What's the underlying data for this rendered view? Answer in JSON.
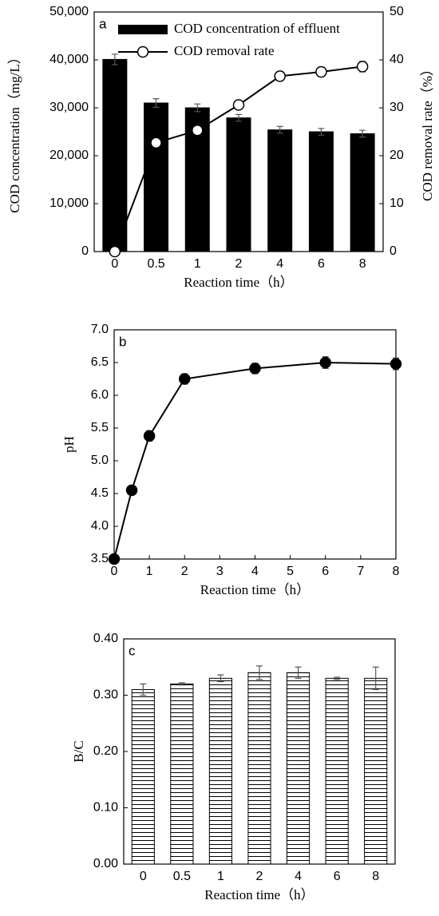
{
  "chart_data": [
    {
      "type": "bar",
      "annotation": "a",
      "x_label": "Reaction time（h）",
      "y_label": "COD  concentration（mg/L）",
      "y2_label": "COD removal rate（%）",
      "categories": [
        "0",
        "0.5",
        "1",
        "2",
        "4",
        "6",
        "8"
      ],
      "series": [
        {
          "name": "COD concentration of effluent",
          "color": "#000000",
          "values": [
            40100,
            31000,
            30000,
            27900,
            25400,
            25000,
            24600
          ],
          "errors": [
            1100,
            900,
            800,
            700,
            700,
            700,
            700
          ]
        },
        {
          "name": "COD removal rate",
          "type": "line",
          "axis": "y2",
          "color": "#000000",
          "marker_fill": "#ffffff",
          "values": [
            0,
            22.7,
            25.3,
            30.6,
            36.6,
            37.5,
            38.6
          ],
          "errors": [
            0,
            0.5,
            0.8,
            0.6,
            1.0,
            1.0,
            1.1
          ]
        }
      ],
      "ylim": [
        0,
        50000
      ],
      "yticks": [
        0,
        {
          "value": 10000,
          "label": "10,000"
        },
        {
          "value": 20000,
          "label": "20,000"
        },
        {
          "value": 30000,
          "label": "30,000"
        },
        {
          "value": 40000,
          "label": "40,000"
        },
        {
          "value": 50000,
          "label": "50,000"
        }
      ],
      "y2lim": [
        0,
        50
      ],
      "y2ticks": [
        0,
        10,
        20,
        30,
        40,
        50
      ],
      "legend": "upper center"
    },
    {
      "type": "line",
      "annotation": "b",
      "x_label": "Reaction time（h）",
      "y_label": "pH",
      "x": [
        0,
        0.5,
        1,
        2,
        4,
        6,
        8
      ],
      "values": [
        3.5,
        4.55,
        5.38,
        6.25,
        6.41,
        6.5,
        6.48
      ],
      "errors": [
        0,
        0.07,
        0.08,
        0.08,
        0.08,
        0.09,
        0.09
      ],
      "color": "#000000",
      "marker_fill": "#000000",
      "xlim": [
        0,
        8
      ],
      "xticks": [
        0,
        1,
        2,
        3,
        4,
        5,
        6,
        7,
        8
      ],
      "ylim": [
        3.5,
        7.0
      ],
      "yticks": [
        3.5,
        {
          "value": 4,
          "label": "4.0"
        },
        4.5,
        {
          "value": 5,
          "label": "5.0"
        },
        5.5,
        {
          "value": 6,
          "label": "6.0"
        },
        6.5,
        {
          "value": 7,
          "label": "7.0"
        }
      ]
    },
    {
      "type": "bar",
      "annotation": "c",
      "x_label": "Reaction time（h）",
      "y_label": "B/C",
      "categories": [
        "0",
        "0.5",
        "1",
        "2",
        "4",
        "6",
        "8"
      ],
      "values": [
        0.31,
        0.32,
        0.33,
        0.34,
        0.34,
        0.33,
        0.33
      ],
      "errors": [
        0.01,
        0.002,
        0.006,
        0.012,
        0.01,
        0.002,
        0.02
      ],
      "color": "#000000",
      "pattern": "horizontal-lines",
      "ylim": [
        0,
        0.4
      ],
      "yticks": [
        {
          "value": 0,
          "label": "0.00"
        },
        {
          "value": 0.1,
          "label": "0.10"
        },
        {
          "value": 0.2,
          "label": "0.20"
        },
        {
          "value": 0.3,
          "label": "0.30"
        },
        {
          "value": 0.4,
          "label": "0.40"
        }
      ]
    }
  ]
}
